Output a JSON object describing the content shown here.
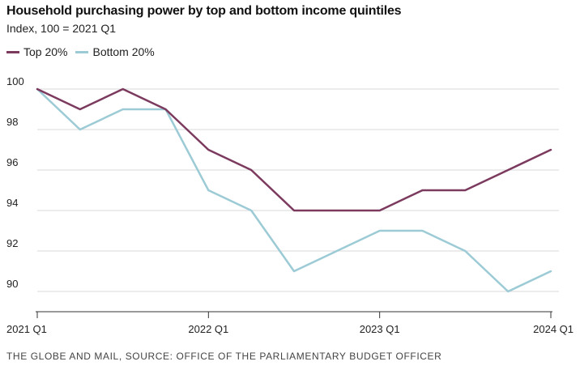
{
  "header": {
    "title": "Household purchasing power by top and bottom income quintiles",
    "subtitle": "Index, 100 = 2021 Q1"
  },
  "footer": {
    "source": "THE GLOBE AND MAIL, SOURCE: OFFICE OF THE PARLIAMENTARY BUDGET OFFICER"
  },
  "colors": {
    "top": "#7b3a5e",
    "bottom": "#9ccbd6",
    "grid": "#d9d9d9",
    "axis": "#333333"
  },
  "chart_data": {
    "type": "line",
    "title": "Household purchasing power by top and bottom income quintiles",
    "subtitle": "Index, 100 = 2021 Q1",
    "xlabel": "",
    "ylabel": "",
    "x": [
      "2021 Q1",
      "2021 Q2",
      "2021 Q3",
      "2021 Q4",
      "2022 Q1",
      "2022 Q2",
      "2022 Q3",
      "2022 Q4",
      "2023 Q1",
      "2023 Q2",
      "2023 Q3",
      "2023 Q4",
      "2024 Q1"
    ],
    "xticks": [
      "2021 Q1",
      "2022 Q1",
      "2023 Q1",
      "2024 Q1"
    ],
    "yticks": [
      90,
      92,
      94,
      96,
      98,
      100
    ],
    "ylim": [
      89,
      100
    ],
    "grid": true,
    "legend_position": "top-left",
    "series": [
      {
        "name": "Top 20%",
        "color": "#7b3a5e",
        "values": [
          100,
          99,
          100,
          99,
          97,
          96,
          94,
          94,
          94,
          95,
          95,
          96,
          97
        ]
      },
      {
        "name": "Bottom 20%",
        "color": "#9ccbd6",
        "values": [
          100,
          98,
          99,
          99,
          95,
          94,
          91,
          92,
          93,
          93,
          92,
          90,
          91
        ]
      }
    ]
  }
}
